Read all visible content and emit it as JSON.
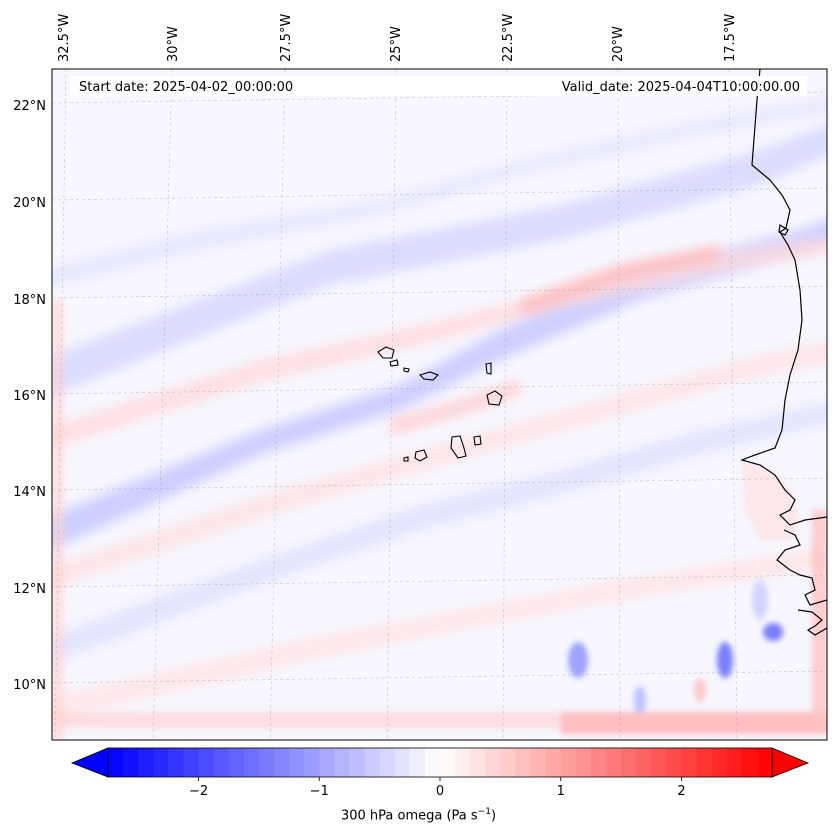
{
  "map": {
    "start_label": "Start date: 2025-04-02_00:00:00",
    "valid_label": "Valid_date: 2025-04-04T10:00:00.00",
    "lon_ticks": [
      "32.5°W",
      "30°W",
      "27.5°W",
      "25°W",
      "22.5°W",
      "20°W",
      "17.5°W"
    ],
    "lat_ticks": [
      "22°N",
      "20°N",
      "18°N",
      "16°N",
      "14°N",
      "12°N",
      "10°N"
    ],
    "field": "300 hPa omega",
    "colors": {
      "negative": "#0000ff",
      "positive": "#ff0000",
      "neutral": "#ffffff",
      "coast": "#000000"
    }
  },
  "colorbar": {
    "ticks": [
      "−2",
      "−1",
      "0",
      "1",
      "2"
    ],
    "label_text": "300 hPa omega (Pa s",
    "label_exponent": "−1",
    "label_suffix": ")",
    "range": [
      -2.75,
      2.75
    ]
  }
}
